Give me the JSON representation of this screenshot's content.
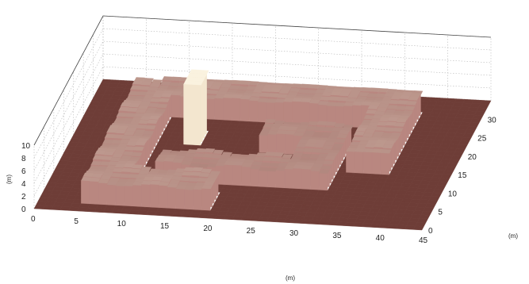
{
  "chart_data": {
    "type": "surface",
    "title": "",
    "xlabel": "(m)",
    "ylabel": "(m)",
    "zlabel": "(m)",
    "xlim": [
      0,
      45
    ],
    "ylim": [
      0,
      35
    ],
    "zlim": [
      0,
      10
    ],
    "x_ticks": [
      0,
      5,
      10,
      15,
      20,
      25,
      30,
      35,
      40,
      45
    ],
    "y_ticks": [
      0,
      5,
      10,
      15,
      20,
      25,
      30
    ],
    "z_ticks": [
      0,
      2,
      4,
      6,
      8,
      10
    ],
    "grid": true,
    "colormap": "pink",
    "base_color": "#6e3d37",
    "features": [
      {
        "kind": "outer-u-wall",
        "height": 3.2
      },
      {
        "kind": "inner-wall",
        "height": 2.6
      },
      {
        "kind": "tall-block",
        "x": 13.5,
        "y": 21.5,
        "height": 9.5
      }
    ]
  }
}
